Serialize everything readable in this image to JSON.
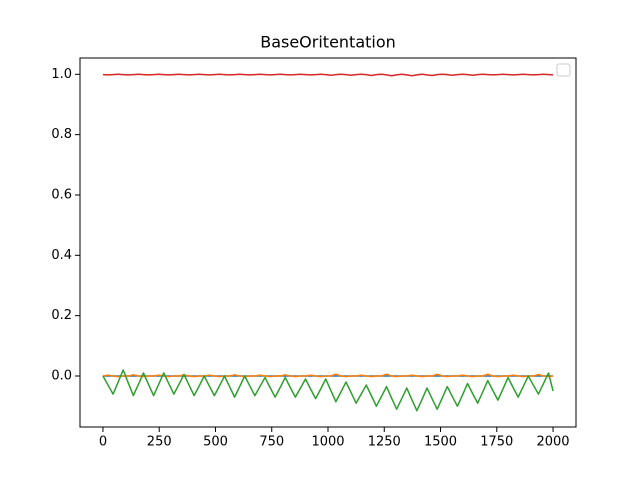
{
  "chart_data": {
    "type": "line",
    "title": "BaseOritentation",
    "x": [
      0,
      22.5,
      45,
      67.5,
      90,
      112.5,
      135,
      157.5,
      180,
      202.5,
      225,
      247.5,
      270,
      292.5,
      315,
      337.5,
      360,
      382.5,
      405,
      427.5,
      450,
      472.5,
      495,
      517.5,
      540,
      562.5,
      585,
      607.5,
      630,
      652.5,
      675,
      697.5,
      720,
      742.5,
      765,
      787.5,
      810,
      832.5,
      855,
      877.5,
      900,
      922.5,
      945,
      967.5,
      990,
      1012.5,
      1035,
      1057.5,
      1080,
      1102.5,
      1125,
      1147.5,
      1170,
      1192.5,
      1215,
      1237.5,
      1260,
      1282.5,
      1305,
      1327.5,
      1350,
      1372.5,
      1395,
      1417.5,
      1440,
      1462.5,
      1485,
      1507.5,
      1530,
      1552.5,
      1575,
      1597.5,
      1620,
      1642.5,
      1665,
      1687.5,
      1710,
      1732.5,
      1755,
      1777.5,
      1800,
      1822.5,
      1845,
      1867.5,
      1890,
      1912.5,
      1935,
      1957.5,
      1980,
      2000
    ],
    "series": [
      {
        "color": "#1f77b4",
        "values": [
          0,
          0,
          0,
          0,
          0,
          0,
          0,
          0,
          0,
          0,
          0,
          0,
          0,
          0,
          0,
          0,
          0,
          0,
          0,
          0,
          0,
          0,
          0,
          0,
          0,
          0,
          0,
          0,
          0,
          0,
          0,
          0,
          0,
          0,
          0,
          0,
          0,
          0,
          0,
          0,
          0,
          0,
          0,
          0,
          0,
          0,
          0,
          0,
          0,
          0,
          0,
          0,
          0,
          0,
          0,
          0,
          0,
          0,
          0,
          0,
          0,
          0,
          0,
          0,
          0,
          0,
          0,
          0,
          0,
          0,
          0,
          0,
          0,
          0,
          0,
          0,
          0,
          0,
          0,
          0,
          0,
          0,
          0,
          0,
          0,
          0,
          0,
          0,
          0,
          0
        ]
      },
      {
        "color": "#ff7f0e",
        "values": [
          0,
          0.003,
          0,
          -0.002,
          0,
          0,
          0.004,
          0,
          -0.002,
          0,
          0,
          0.003,
          0,
          -0.002,
          0,
          0,
          0.004,
          0,
          -0.002,
          0,
          0,
          0.003,
          0,
          -0.002,
          0,
          0,
          0.004,
          0,
          -0.002,
          0,
          0,
          0.003,
          0,
          -0.002,
          0,
          0,
          0.004,
          0,
          -0.002,
          0,
          0,
          0.003,
          0,
          -0.002,
          0,
          0,
          0.006,
          0,
          -0.002,
          0,
          0,
          0.003,
          0,
          -0.002,
          0,
          0,
          0.006,
          0,
          -0.002,
          0,
          0,
          0.003,
          0,
          -0.002,
          0,
          0,
          0.006,
          0,
          -0.002,
          0,
          0,
          0.003,
          0,
          -0.002,
          0,
          0,
          0.006,
          0,
          -0.002,
          0,
          0,
          0.003,
          0,
          -0.002,
          0,
          0,
          0.005,
          0,
          -0.002,
          0
        ]
      },
      {
        "color": "#2ca02c",
        "values": [
          0,
          -0.03,
          -0.06,
          -0.02,
          0.02,
          -0.023,
          -0.065,
          -0.028,
          0.01,
          -0.028,
          -0.065,
          -0.028,
          0.01,
          -0.025,
          -0.06,
          -0.028,
          0.005,
          -0.03,
          -0.065,
          -0.033,
          0,
          -0.033,
          -0.065,
          -0.033,
          0,
          -0.035,
          -0.07,
          -0.035,
          0,
          -0.033,
          -0.065,
          -0.035,
          -0.005,
          -0.038,
          -0.07,
          -0.038,
          -0.005,
          -0.038,
          -0.07,
          -0.04,
          -0.01,
          -0.043,
          -0.075,
          -0.043,
          -0.01,
          -0.048,
          -0.085,
          -0.053,
          -0.02,
          -0.055,
          -0.09,
          -0.06,
          -0.03,
          -0.065,
          -0.1,
          -0.068,
          -0.035,
          -0.073,
          -0.11,
          -0.075,
          -0.04,
          -0.078,
          -0.115,
          -0.078,
          -0.04,
          -0.075,
          -0.11,
          -0.073,
          -0.035,
          -0.068,
          -0.1,
          -0.063,
          -0.025,
          -0.058,
          -0.09,
          -0.053,
          -0.015,
          -0.048,
          -0.08,
          -0.043,
          -0.005,
          -0.038,
          -0.07,
          -0.035,
          0,
          -0.03,
          -0.06,
          -0.025,
          0.01,
          -0.05
        ]
      },
      {
        "color": "#d62728",
        "values": [
          0.999,
          0.998,
          0.999,
          1,
          0.999,
          0.998,
          0.999,
          1,
          0.999,
          0.998,
          0.999,
          1,
          0.999,
          0.998,
          0.999,
          1,
          0.999,
          0.998,
          0.999,
          1,
          0.999,
          0.998,
          0.999,
          1,
          0.999,
          0.998,
          0.999,
          1,
          0.999,
          0.998,
          0.999,
          1,
          0.999,
          0.998,
          0.999,
          1,
          0.999,
          0.998,
          0.999,
          1,
          0.999,
          0.998,
          0.999,
          1,
          0.999,
          0.997,
          0.999,
          1,
          0.999,
          0.997,
          0.999,
          1,
          0.999,
          0.996,
          0.999,
          1,
          0.998,
          0.995,
          0.998,
          1,
          0.998,
          0.995,
          0.998,
          1,
          0.998,
          0.996,
          0.999,
          1,
          0.999,
          0.997,
          0.999,
          1,
          0.999,
          0.997,
          0.999,
          1,
          0.999,
          0.998,
          0.999,
          1,
          0.999,
          0.998,
          0.999,
          1,
          0.999,
          0.998,
          0.999,
          1,
          0.999,
          0.998
        ]
      }
    ],
    "xlim": [
      -102,
      2102
    ],
    "xticks": [
      0,
      250,
      500,
      750,
      1000,
      1250,
      1500,
      1750,
      2000
    ],
    "ylim": [
      -0.169,
      1.054
    ],
    "yticks": [
      {
        "value": 0,
        "label": "0.0"
      },
      0.2,
      0.4,
      0.6,
      0.8,
      {
        "value": 1,
        "label": "1.0"
      }
    ]
  }
}
